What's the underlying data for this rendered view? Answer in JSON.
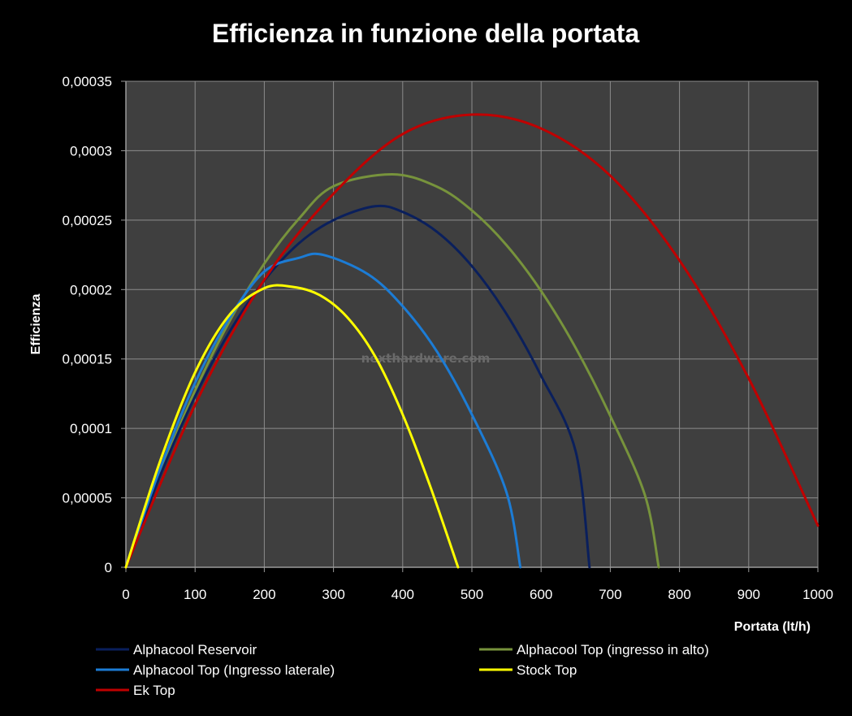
{
  "chart_data": {
    "type": "line",
    "title": "Efficienza in funzione della portata",
    "xlabel": "Portata (lt/h)",
    "ylabel": "Efficienza",
    "xlim": [
      0,
      1000
    ],
    "ylim": [
      0,
      0.00035
    ],
    "x_ticks": [
      0,
      100,
      200,
      300,
      400,
      500,
      600,
      700,
      800,
      900,
      1000
    ],
    "x_tick_labels": [
      "0",
      "100",
      "200",
      "300",
      "400",
      "500",
      "600",
      "700",
      "800",
      "900",
      "1000"
    ],
    "y_ticks": [
      0,
      5e-05,
      0.0001,
      0.00015,
      0.0002,
      0.00025,
      0.0003,
      0.00035
    ],
    "y_tick_labels": [
      "0",
      "0,00005",
      "0,0001",
      "0,00015",
      "0,0002",
      "0,00025",
      "0,0003",
      "0,00035"
    ],
    "grid": true,
    "legend_position": "bottom",
    "watermark": "nexthardware.com",
    "series": [
      {
        "name": "Alphacool Reservoir",
        "color": "#0a1f5c",
        "x": [
          0,
          50,
          100,
          150,
          200,
          250,
          300,
          360,
          400,
          450,
          500,
          550,
          600,
          650,
          670
        ],
        "y": [
          0,
          6.66e-05,
          0.0001231,
          0.0001698,
          0.0002065,
          0.0002333,
          0.00025,
          0.00026,
          0.0002559,
          0.0002414,
          0.0002169,
          0.0001824,
          0.0001379,
          8.34e-05,
          0
        ]
      },
      {
        "name": "Alphacool Top (ingresso in alto)",
        "color": "#77933c",
        "x": [
          0,
          50,
          100,
          150,
          200,
          250,
          300,
          385,
          450,
          500,
          550,
          600,
          650,
          700,
          750,
          770
        ],
        "y": [
          0,
          6.81e-05,
          0.0001272,
          0.0001774,
          0.0002187,
          0.000251,
          0.0002744,
          0.000283,
          0.000274,
          0.000257,
          0.000232,
          0.000199,
          0.000158,
          0.000109,
          5.2e-05,
          0
        ]
      },
      {
        "name": "Alphacool Top (Ingresso laterale)",
        "color": "#1c7cd5",
        "x": [
          0,
          50,
          100,
          150,
          200,
          250,
          285,
          350,
          400,
          450,
          500,
          550,
          570
        ],
        "y": [
          0,
          7.18e-05,
          0.0001328,
          0.0001797,
          0.000213,
          0.0002228,
          0.000225,
          0.000211,
          0.000188,
          0.000155,
          0.00011,
          5.4e-05,
          0
        ]
      },
      {
        "name": "Stock Top",
        "color": "#ffff00",
        "x": [
          0,
          50,
          100,
          150,
          200,
          240,
          280,
          320,
          360,
          400,
          440,
          480
        ],
        "y": [
          0,
          7.72e-05,
          0.0001403,
          0.000182,
          0.000201,
          0.000202,
          0.000196,
          0.00018,
          0.000152,
          0.00011,
          5.8e-05,
          0
        ]
      },
      {
        "name": "Ek Top",
        "color": "#c00000",
        "x": [
          0,
          100,
          200,
          300,
          400,
          500,
          600,
          700,
          800,
          900,
          1000
        ],
        "y": [
          0,
          0.000117,
          0.000207,
          0.000269,
          0.000312,
          0.000326,
          0.000316,
          0.000282,
          0.000221,
          0.000136,
          3e-05
        ]
      }
    ]
  }
}
